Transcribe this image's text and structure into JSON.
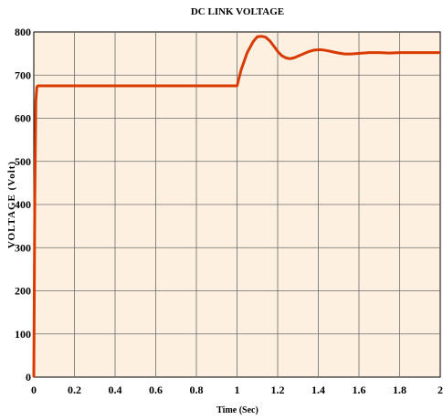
{
  "chart_data": {
    "type": "line",
    "title": "DC LINK VOLTAGE",
    "xlabel": "Time (Sec)",
    "ylabel": "VOLTAGE (Volt)",
    "xlim": [
      0,
      2
    ],
    "ylim": [
      0,
      800
    ],
    "x_ticks": [
      "0",
      "0.2",
      "0.4",
      "0.6",
      "0.8",
      "1",
      "1.2",
      "1.4",
      "1.6",
      "1.8",
      "2"
    ],
    "y_ticks": [
      "0",
      "100",
      "200",
      "300",
      "400",
      "500",
      "600",
      "700",
      "800"
    ],
    "grid": true,
    "background_color": "#fdf0e0",
    "series": [
      {
        "color": "#d83a00",
        "x": [
          0,
          0.005,
          0.01,
          0.015,
          0.02,
          0.1,
          0.5,
          0.9,
          0.99,
          1.0,
          1.02,
          1.05,
          1.08,
          1.1,
          1.12,
          1.14,
          1.16,
          1.18,
          1.2,
          1.22,
          1.24,
          1.26,
          1.28,
          1.3,
          1.32,
          1.35,
          1.38,
          1.41,
          1.44,
          1.47,
          1.5,
          1.53,
          1.56,
          1.59,
          1.62,
          1.65,
          1.7,
          1.75,
          1.8,
          1.85,
          1.9,
          1.95,
          2.0
        ],
        "y": [
          0,
          420,
          640,
          672,
          675,
          675,
          675,
          675,
          675,
          675,
          712,
          752,
          778,
          789,
          790,
          788,
          780,
          768,
          755,
          745,
          740,
          738,
          740,
          744,
          748,
          754,
          758,
          759,
          757,
          754,
          751,
          749,
          749,
          750,
          751,
          752,
          752,
          751,
          752,
          752,
          752,
          752,
          752
        ]
      }
    ]
  }
}
